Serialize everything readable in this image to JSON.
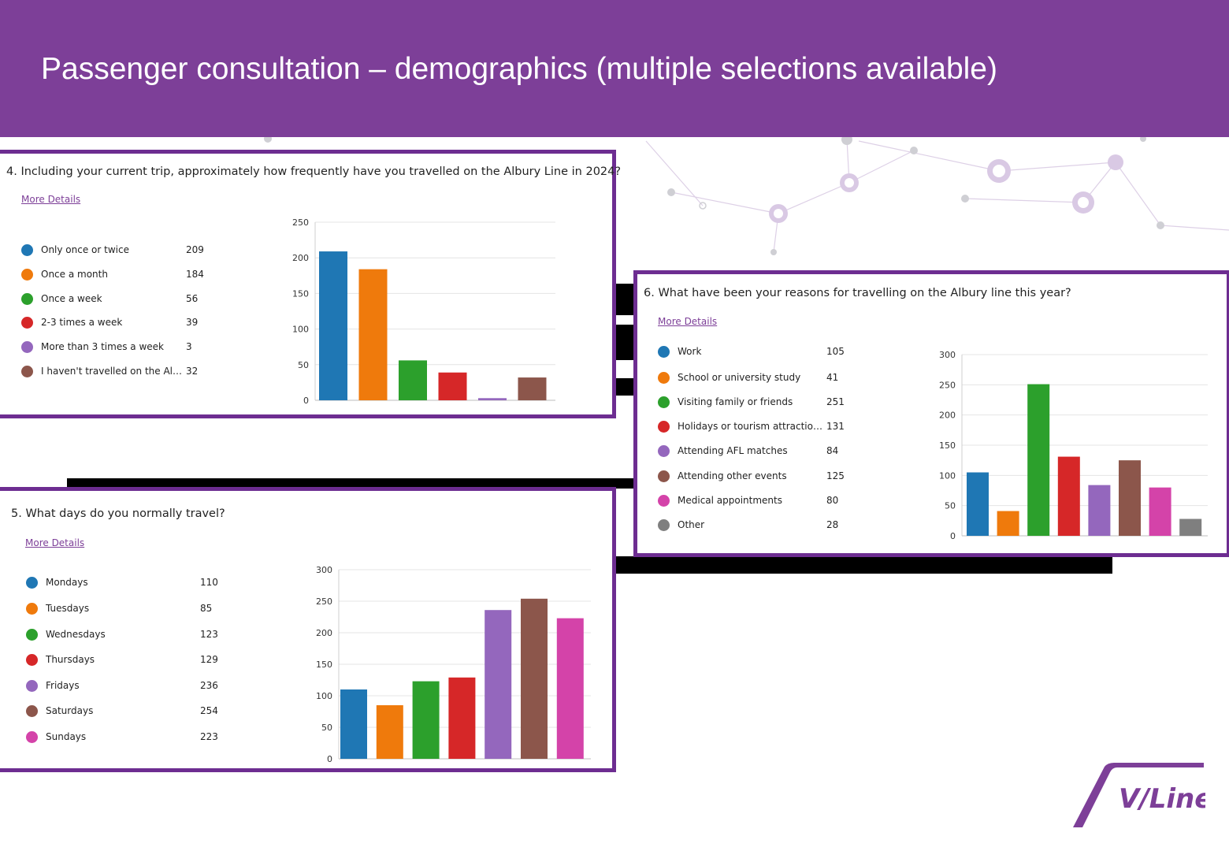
{
  "page": {
    "title": "Passenger consultation – demographics (multiple selections available)",
    "brand_color": "#7d3f98",
    "logo_text": "V/Line"
  },
  "cards": {
    "q4": {
      "question": "4. Including your current trip, approximately how frequently have you travelled on the Albury Line in 2024?",
      "more_details": "More Details",
      "legend": [
        {
          "label": "Only once or twice",
          "value": "209"
        },
        {
          "label": "Once a month",
          "value": "184"
        },
        {
          "label": "Once a week",
          "value": "56"
        },
        {
          "label": "2-3 times a week",
          "value": "39"
        },
        {
          "label": "More than 3 times a week",
          "value": "3"
        },
        {
          "label": "I haven't travelled on the Albury...",
          "value": "32"
        }
      ]
    },
    "q5": {
      "question": "5. What days do you normally travel?",
      "more_details": "More Details",
      "legend": [
        {
          "label": "Mondays",
          "value": "110"
        },
        {
          "label": "Tuesdays",
          "value": "85"
        },
        {
          "label": "Wednesdays",
          "value": "123"
        },
        {
          "label": "Thursdays",
          "value": "129"
        },
        {
          "label": "Fridays",
          "value": "236"
        },
        {
          "label": "Saturdays",
          "value": "254"
        },
        {
          "label": "Sundays",
          "value": "223"
        }
      ]
    },
    "q6": {
      "question": "6. What have been your reasons for travelling on the Albury line this year?",
      "more_details": "More Details",
      "legend": [
        {
          "label": "Work",
          "value": "105"
        },
        {
          "label": "School or university study",
          "value": "41"
        },
        {
          "label": "Visiting family or friends",
          "value": "251"
        },
        {
          "label": "Holidays or tourism attractions",
          "value": "131"
        },
        {
          "label": "Attending AFL matches",
          "value": "84"
        },
        {
          "label": "Attending other events",
          "value": "125"
        },
        {
          "label": "Medical appointments",
          "value": "80"
        },
        {
          "label": "Other",
          "value": "28"
        }
      ]
    }
  },
  "chart_data": [
    {
      "id": "q4",
      "type": "bar",
      "title": "4. Including your current trip, approximately how frequently have you travelled on the Albury Line in 2024?",
      "categories": [
        "Only once or twice",
        "Once a month",
        "Once a week",
        "2-3 times a week",
        "More than 3 times a week",
        "I haven't travelled on the Albury..."
      ],
      "values": [
        209,
        184,
        56,
        39,
        3,
        32
      ],
      "colors": [
        "#1f77b4",
        "#ef7a0c",
        "#2ca02c",
        "#d62728",
        "#9467bd",
        "#8c564b"
      ],
      "ylim": [
        0,
        250
      ],
      "yticks": [
        0,
        50,
        100,
        150,
        200,
        250
      ],
      "grid": true,
      "legend_position": "left"
    },
    {
      "id": "q5",
      "type": "bar",
      "title": "5. What days do you normally travel?",
      "categories": [
        "Mondays",
        "Tuesdays",
        "Wednesdays",
        "Thursdays",
        "Fridays",
        "Saturdays",
        "Sundays"
      ],
      "values": [
        110,
        85,
        123,
        129,
        236,
        254,
        223
      ],
      "colors": [
        "#1f77b4",
        "#ef7a0c",
        "#2ca02c",
        "#d62728",
        "#9467bd",
        "#8c564b",
        "#d443a9"
      ],
      "ylim": [
        0,
        300
      ],
      "yticks": [
        0,
        50,
        100,
        150,
        200,
        250,
        300
      ],
      "grid": true,
      "legend_position": "left"
    },
    {
      "id": "q6",
      "type": "bar",
      "title": "6. What have been your reasons for travelling on the Albury line this year?",
      "categories": [
        "Work",
        "School or university study",
        "Visiting family or friends",
        "Holidays or tourism attractions",
        "Attending AFL matches",
        "Attending other events",
        "Medical appointments",
        "Other"
      ],
      "values": [
        105,
        41,
        251,
        131,
        84,
        125,
        80,
        28
      ],
      "colors": [
        "#1f77b4",
        "#ef7a0c",
        "#2ca02c",
        "#d62728",
        "#9467bd",
        "#8c564b",
        "#d443a9",
        "#7f7f7f"
      ],
      "ylim": [
        0,
        300
      ],
      "yticks": [
        0,
        50,
        100,
        150,
        200,
        250,
        300
      ],
      "grid": true,
      "legend_position": "left"
    }
  ]
}
